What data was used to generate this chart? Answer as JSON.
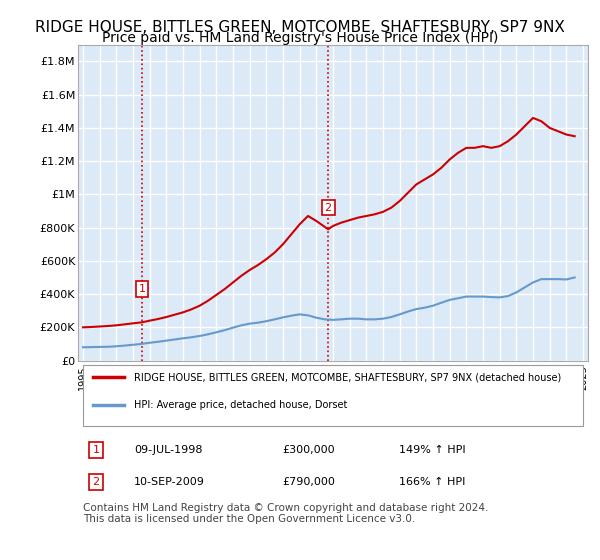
{
  "title": "RIDGE HOUSE, BITTLES GREEN, MOTCOMBE, SHAFTESBURY, SP7 9NX",
  "subtitle": "Price paid vs. HM Land Registry's House Price Index (HPI)",
  "title_fontsize": 11,
  "subtitle_fontsize": 10,
  "background_color": "#ffffff",
  "plot_bg_color": "#dce9f7",
  "grid_color": "#ffffff",
  "ylim": [
    0,
    1900000
  ],
  "yticks": [
    0,
    200000,
    400000,
    600000,
    800000,
    1000000,
    1200000,
    1400000,
    1600000,
    1800000
  ],
  "ytick_labels": [
    "£0",
    "£200K",
    "£400K",
    "£600K",
    "£800K",
    "£1M",
    "£1.2M",
    "£1.4M",
    "£1.6M",
    "£1.8M"
  ],
  "x_start_year": 1995,
  "x_end_year": 2025,
  "sale_dates": [
    1998.53,
    2009.71
  ],
  "sale_prices": [
    300000,
    790000
  ],
  "sale_labels": [
    "1",
    "2"
  ],
  "vline_color": "#cc0000",
  "sale_marker_color": "#cc0000",
  "legend_entry1": "RIDGE HOUSE, BITTLES GREEN, MOTCOMBE, SHAFTESBURY, SP7 9NX (detached house)",
  "legend_entry2": "HPI: Average price, detached house, Dorset",
  "annotation1": [
    "1",
    "09-JUL-1998",
    "£300,000",
    "149% ↑ HPI"
  ],
  "annotation2": [
    "2",
    "10-SEP-2009",
    "£790,000",
    "166% ↑ HPI"
  ],
  "footer": "Contains HM Land Registry data © Crown copyright and database right 2024.\nThis data is licensed under the Open Government Licence v3.0.",
  "red_line_color": "#cc0000",
  "blue_line_color": "#6699cc",
  "red_data_x": [
    1995.0,
    1995.5,
    1996.0,
    1996.5,
    1997.0,
    1997.5,
    1998.0,
    1998.53,
    1999.0,
    1999.5,
    2000.0,
    2000.5,
    2001.0,
    2001.5,
    2002.0,
    2002.5,
    2003.0,
    2003.5,
    2004.0,
    2004.5,
    2005.0,
    2005.5,
    2006.0,
    2006.5,
    2007.0,
    2007.5,
    2008.0,
    2008.5,
    2009.0,
    2009.71,
    2010.0,
    2010.5,
    2011.0,
    2011.5,
    2012.0,
    2012.5,
    2013.0,
    2013.5,
    2014.0,
    2014.5,
    2015.0,
    2015.5,
    2016.0,
    2016.5,
    2017.0,
    2017.5,
    2018.0,
    2018.5,
    2019.0,
    2019.5,
    2020.0,
    2020.5,
    2021.0,
    2021.5,
    2022.0,
    2022.5,
    2023.0,
    2023.5,
    2024.0,
    2024.5
  ],
  "red_data_y": [
    200000,
    202000,
    205000,
    208000,
    212000,
    218000,
    224000,
    230000,
    240000,
    250000,
    262000,
    276000,
    290000,
    308000,
    330000,
    360000,
    395000,
    430000,
    470000,
    510000,
    545000,
    575000,
    610000,
    650000,
    700000,
    760000,
    820000,
    870000,
    840000,
    790000,
    810000,
    830000,
    845000,
    860000,
    870000,
    880000,
    895000,
    920000,
    960000,
    1010000,
    1060000,
    1090000,
    1120000,
    1160000,
    1210000,
    1250000,
    1280000,
    1280000,
    1290000,
    1280000,
    1290000,
    1320000,
    1360000,
    1410000,
    1460000,
    1440000,
    1400000,
    1380000,
    1360000,
    1350000
  ],
  "blue_data_x": [
    1995.0,
    1995.5,
    1996.0,
    1996.5,
    1997.0,
    1997.5,
    1998.0,
    1998.5,
    1999.0,
    1999.5,
    2000.0,
    2000.5,
    2001.0,
    2001.5,
    2002.0,
    2002.5,
    2003.0,
    2003.5,
    2004.0,
    2004.5,
    2005.0,
    2005.5,
    2006.0,
    2006.5,
    2007.0,
    2007.5,
    2008.0,
    2008.5,
    2009.0,
    2009.5,
    2010.0,
    2010.5,
    2011.0,
    2011.5,
    2012.0,
    2012.5,
    2013.0,
    2013.5,
    2014.0,
    2014.5,
    2015.0,
    2015.5,
    2016.0,
    2016.5,
    2017.0,
    2017.5,
    2018.0,
    2018.5,
    2019.0,
    2019.5,
    2020.0,
    2020.5,
    2021.0,
    2021.5,
    2022.0,
    2022.5,
    2023.0,
    2023.5,
    2024.0,
    2024.5
  ],
  "blue_data_y": [
    80000,
    81000,
    82000,
    83000,
    86000,
    90000,
    95000,
    100000,
    107000,
    113000,
    120000,
    127000,
    134000,
    140000,
    148000,
    158000,
    170000,
    183000,
    198000,
    212000,
    222000,
    228000,
    237000,
    248000,
    260000,
    270000,
    278000,
    272000,
    258000,
    248000,
    245000,
    248000,
    252000,
    252000,
    248000,
    248000,
    252000,
    262000,
    278000,
    295000,
    310000,
    318000,
    330000,
    348000,
    365000,
    375000,
    385000,
    385000,
    385000,
    382000,
    380000,
    388000,
    410000,
    440000,
    470000,
    490000,
    490000,
    490000,
    488000,
    500000
  ],
  "note_fontsize": 7.5
}
